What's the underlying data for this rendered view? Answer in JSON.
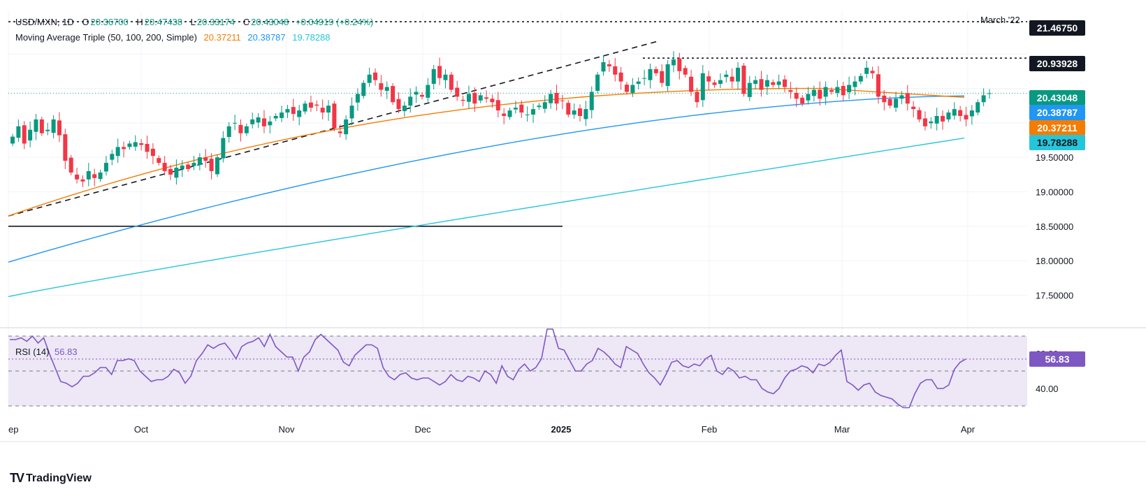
{
  "header": {
    "symbol": "USD/MXN, 1D",
    "open_label": "O",
    "open": "20.36700",
    "high_label": "H",
    "high": "20.47438",
    "low_label": "L",
    "low": "20.33174",
    "close_label": "C",
    "close": "20.43048",
    "change": "+0.04919 (+0.24%)",
    "ma_title": "Moving Average Triple (50, 100, 200, Simple)",
    "ma50_value": "20.37211",
    "ma100_value": "20.38787",
    "ma200_value": "19.78288"
  },
  "annotations": {
    "march22_label": "March '22",
    "march22_level": "21.46750",
    "resistance_level": "20.93928"
  },
  "rsi": {
    "title": "RSI (14)",
    "value": "56.83"
  },
  "branding": {
    "logo_text": "TradingView"
  },
  "colors": {
    "up": "#089981",
    "down": "#f23645",
    "ma50": "#f57c00",
    "ma100": "#2196f3",
    "ma200": "#26c6da",
    "rsi": "#7e57c2",
    "rsi_band": "#ede7f6",
    "grid": "#f0f3fa"
  },
  "chart_data": [
    {
      "type": "candlestick",
      "title": "USD/MXN, 1D",
      "y_ticks": [
        17.5,
        18.0,
        18.5,
        19.0,
        19.5,
        20.0,
        20.5,
        21.0
      ],
      "y_tick_labels": [
        "17.50000",
        "18.00000",
        "18.50000",
        "19.00000",
        "19.50000"
      ],
      "ylim": [
        17.1,
        21.62
      ],
      "x_tick_labels": [
        "ep",
        "Oct",
        "Nov",
        "Dec",
        "2025",
        "Feb",
        "Mar",
        "Apr"
      ],
      "right_axis_labels": [
        {
          "value": 21.4675,
          "text": "21.46750",
          "kind": "level"
        },
        {
          "value": 20.93928,
          "text": "20.93928",
          "kind": "level"
        },
        {
          "value": 20.43048,
          "text": "20.43048",
          "kind": "close"
        },
        {
          "value": 20.38787,
          "text": "20.38787",
          "kind": "ma100"
        },
        {
          "value": 20.37211,
          "text": "20.37211",
          "kind": "ma50"
        },
        {
          "value": 19.78288,
          "text": "19.78288",
          "kind": "ma200"
        }
      ],
      "closes": [
        19.8,
        19.95,
        19.7,
        19.9,
        20.05,
        19.85,
        19.9,
        20.05,
        19.82,
        19.45,
        19.28,
        19.18,
        19.15,
        19.3,
        19.2,
        19.28,
        19.42,
        19.55,
        19.65,
        19.62,
        19.7,
        19.72,
        19.68,
        19.58,
        19.52,
        19.42,
        19.3,
        19.25,
        19.35,
        19.38,
        19.33,
        19.42,
        19.5,
        19.45,
        19.3,
        19.5,
        19.78,
        19.95,
        20.0,
        19.85,
        19.95,
        20.05,
        20.08,
        19.95,
        20.02,
        20.1,
        20.15,
        20.2,
        20.13,
        20.18,
        20.28,
        20.22,
        20.25,
        20.15,
        20.25,
        19.92,
        19.85,
        20.05,
        20.25,
        20.42,
        20.58,
        20.7,
        20.62,
        20.48,
        20.52,
        20.3,
        20.2,
        20.25,
        20.38,
        20.45,
        20.38,
        20.55,
        20.78,
        20.65,
        20.7,
        20.48,
        20.38,
        20.32,
        20.42,
        20.28,
        20.4,
        20.35,
        20.3,
        20.18,
        20.1,
        20.18,
        20.22,
        20.15,
        20.12,
        20.2,
        20.25,
        20.3,
        20.42,
        20.28,
        20.32,
        20.12,
        20.18,
        20.1,
        20.2,
        20.45,
        20.7,
        20.88,
        20.82,
        20.7,
        20.6,
        20.45,
        20.55,
        20.6,
        20.65,
        20.78,
        20.72,
        20.58,
        20.85,
        20.92,
        20.75,
        20.7,
        20.45,
        20.3,
        20.72,
        20.6,
        20.55,
        20.62,
        20.7,
        20.6,
        20.8,
        20.42,
        20.58,
        20.62,
        20.48,
        20.62,
        20.55,
        20.6,
        20.52,
        20.45,
        20.35,
        20.28,
        20.42,
        20.48,
        20.35,
        20.52,
        20.45,
        20.52,
        20.4,
        20.55,
        20.6,
        20.68,
        20.8,
        20.72,
        20.38,
        20.3,
        20.25,
        20.35,
        20.4,
        20.28,
        20.2,
        20.05,
        19.95,
        20.02,
        20.1,
        20.02,
        20.15,
        20.2,
        20.1,
        20.05,
        20.18,
        20.3,
        20.4,
        20.43
      ],
      "series": [
        {
          "name": "MA 50",
          "value": 20.37211
        },
        {
          "name": "MA 100",
          "value": 20.38787
        },
        {
          "name": "MA 200",
          "value": 19.78288
        }
      ]
    },
    {
      "type": "line",
      "title": "RSI (14)",
      "y_ticks": [
        30,
        40,
        50,
        60,
        70
      ],
      "y_tick_labels": [
        "40.00",
        "60.00"
      ],
      "ylim": [
        28,
        72
      ],
      "values": [
        68,
        68,
        69,
        67,
        70,
        66,
        69,
        60,
        52,
        44,
        43,
        41,
        43,
        47,
        47,
        49,
        52,
        52,
        48,
        56,
        56,
        57,
        56,
        50,
        47,
        44,
        45,
        45,
        47,
        51,
        49,
        43,
        47,
        56,
        60,
        65,
        63,
        65,
        66,
        62,
        57,
        64,
        66,
        67,
        69,
        64,
        71,
        64,
        61,
        58,
        58,
        50,
        58,
        61,
        68,
        71,
        68,
        65,
        62,
        55,
        53,
        59,
        62,
        65,
        65,
        63,
        52,
        47,
        45,
        48,
        49,
        46,
        45,
        46,
        46,
        44,
        42,
        44,
        48,
        45,
        44,
        47,
        46,
        44,
        50,
        48,
        43,
        53,
        47,
        45,
        51,
        54,
        50,
        52,
        57,
        74,
        74,
        63,
        62,
        56,
        50,
        50,
        54,
        56,
        63,
        61,
        58,
        54,
        52,
        64,
        62,
        60,
        54,
        49,
        46,
        42,
        48,
        55,
        56,
        53,
        52,
        54,
        53,
        57,
        59,
        50,
        48,
        52,
        50,
        46,
        47,
        45,
        45,
        40,
        38,
        37,
        40,
        46,
        50,
        51,
        53,
        52,
        49,
        54,
        53,
        55,
        59,
        62,
        44,
        42,
        39,
        42,
        43,
        38,
        36,
        35,
        34,
        31,
        29,
        29,
        37,
        43,
        45,
        45,
        40,
        40,
        42,
        51,
        55,
        56.83
      ]
    }
  ]
}
